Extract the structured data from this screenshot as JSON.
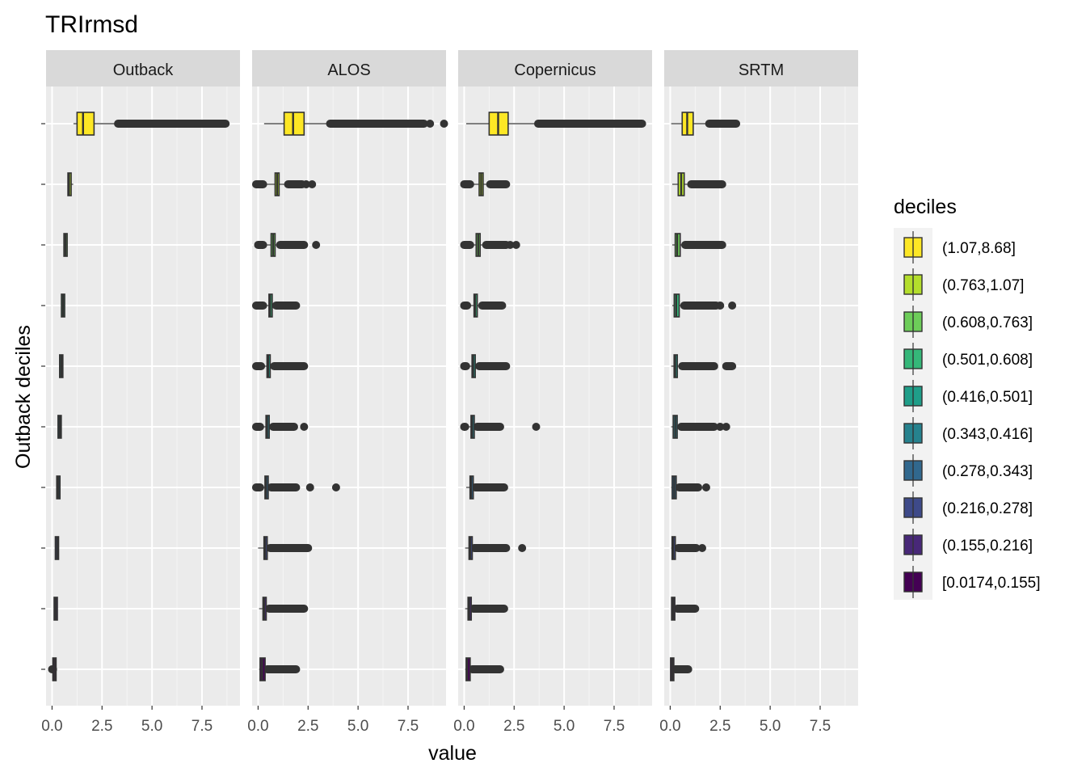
{
  "chart_data": {
    "type": "boxplot",
    "title": "TRIrmsd",
    "xlabel": "value",
    "ylabel": "Outback deciles",
    "xlim": [
      -0.3,
      9.4
    ],
    "xticks": [
      0,
      2.5,
      5,
      7.5
    ],
    "xtick_labels": [
      "0.0",
      "2.5",
      "5.0",
      "7.5"
    ],
    "facets": [
      "Outback",
      "ALOS",
      "Copernicus",
      "SRTM"
    ],
    "legend": {
      "title": "deciles",
      "position": "right",
      "entries": [
        {
          "label": "(1.07,8.68]",
          "color": "#FDE725"
        },
        {
          "label": "(0.763,1.07]",
          "color": "#B4DE2C"
        },
        {
          "label": "(0.608,0.763]",
          "color": "#6DCD59"
        },
        {
          "label": "(0.501,0.608]",
          "color": "#35B779"
        },
        {
          "label": "(0.416,0.501]",
          "color": "#1F9E89"
        },
        {
          "label": "(0.343,0.416]",
          "color": "#26828E"
        },
        {
          "label": "(0.278,0.343]",
          "color": "#31688E"
        },
        {
          "label": "(0.216,0.278]",
          "color": "#3E4A89"
        },
        {
          "label": "(0.155,0.216]",
          "color": "#482878"
        },
        {
          "label": "[0.0174,0.155]",
          "color": "#440154"
        }
      ]
    },
    "panels": [
      {
        "name": "Outback",
        "boxes": [
          {
            "min": 1.07,
            "q1": 1.25,
            "median": 1.55,
            "q3": 2.1,
            "whisker_hi": 3.3,
            "outliers": [
              [
                3.3,
                8.68
              ]
            ]
          },
          {
            "min": 0.77,
            "q1": 0.8,
            "median": 0.85,
            "q3": 0.95,
            "whisker_hi": 1.06,
            "outliers": []
          },
          {
            "min": 0.61,
            "q1": 0.63,
            "median": 0.67,
            "q3": 0.72,
            "whisker_hi": 0.76,
            "outliers": []
          },
          {
            "min": 0.51,
            "q1": 0.52,
            "median": 0.55,
            "q3": 0.58,
            "whisker_hi": 0.6,
            "outliers": []
          },
          {
            "min": 0.42,
            "q1": 0.44,
            "median": 0.46,
            "q3": 0.48,
            "whisker_hi": 0.5,
            "outliers": []
          },
          {
            "min": 0.35,
            "q1": 0.36,
            "median": 0.38,
            "q3": 0.4,
            "whisker_hi": 0.41,
            "outliers": []
          },
          {
            "min": 0.28,
            "q1": 0.3,
            "median": 0.31,
            "q3": 0.33,
            "whisker_hi": 0.34,
            "outliers": []
          },
          {
            "min": 0.22,
            "q1": 0.23,
            "median": 0.25,
            "q3": 0.26,
            "whisker_hi": 0.27,
            "outliers": []
          },
          {
            "min": 0.16,
            "q1": 0.17,
            "median": 0.18,
            "q3": 0.2,
            "whisker_hi": 0.21,
            "outliers": []
          },
          {
            "min": 0.08,
            "q1": 0.1,
            "median": 0.12,
            "q3": 0.14,
            "whisker_hi": 0.15,
            "outliers": [
              [
                0.0,
                0.05
              ]
            ]
          }
        ]
      },
      {
        "name": "ALOS",
        "boxes": [
          {
            "min": 0.3,
            "q1": 1.3,
            "median": 1.75,
            "q3": 2.3,
            "whisker_hi": 3.6,
            "outliers": [
              [
                3.6,
                8.3
              ],
              [
                8.6,
                8.6
              ],
              [
                9.3,
                9.3
              ]
            ]
          },
          {
            "min": 0.4,
            "q1": 0.85,
            "median": 0.95,
            "q3": 1.05,
            "whisker_hi": 1.5,
            "outliers": [
              [
                -0.1,
                0.25
              ],
              [
                1.5,
                2.2
              ],
              [
                2.4,
                2.4
              ],
              [
                2.7,
                2.7
              ]
            ]
          },
          {
            "min": 0.4,
            "q1": 0.65,
            "median": 0.75,
            "q3": 0.85,
            "whisker_hi": 1.1,
            "outliers": [
              [
                0.0,
                0.25
              ],
              [
                1.1,
                2.3
              ],
              [
                2.9,
                2.9
              ]
            ]
          },
          {
            "min": 0.3,
            "q1": 0.55,
            "median": 0.6,
            "q3": 0.7,
            "whisker_hi": 0.9,
            "outliers": [
              [
                -0.1,
                0.25
              ],
              [
                0.9,
                1.9
              ]
            ]
          },
          {
            "min": 0.25,
            "q1": 0.45,
            "median": 0.5,
            "q3": 0.6,
            "whisker_hi": 0.8,
            "outliers": [
              [
                -0.1,
                0.15
              ],
              [
                0.8,
                2.3
              ]
            ]
          },
          {
            "min": 0.25,
            "q1": 0.4,
            "median": 0.45,
            "q3": 0.55,
            "whisker_hi": 0.75,
            "outliers": [
              [
                -0.1,
                0.1
              ],
              [
                0.75,
                1.8
              ],
              [
                2.3,
                2.3
              ]
            ]
          },
          {
            "min": 0.25,
            "q1": 0.35,
            "median": 0.4,
            "q3": 0.5,
            "whisker_hi": 0.65,
            "outliers": [
              [
                -0.1,
                0.1
              ],
              [
                0.65,
                1.9
              ],
              [
                2.6,
                2.6
              ],
              [
                3.9,
                3.9
              ]
            ]
          },
          {
            "min": 0.0,
            "q1": 0.3,
            "median": 0.35,
            "q3": 0.45,
            "whisker_hi": 0.6,
            "outliers": [
              [
                0.6,
                2.5
              ]
            ]
          },
          {
            "min": 0.05,
            "q1": 0.25,
            "median": 0.3,
            "q3": 0.4,
            "whisker_hi": 0.55,
            "outliers": [
              [
                0.55,
                2.3
              ]
            ]
          },
          {
            "min": 0.05,
            "q1": 0.1,
            "median": 0.2,
            "q3": 0.35,
            "whisker_hi": 0.45,
            "outliers": [
              [
                0.45,
                1.9
              ]
            ]
          }
        ]
      },
      {
        "name": "Copernicus",
        "boxes": [
          {
            "min": 0.1,
            "q1": 1.25,
            "median": 1.7,
            "q3": 2.2,
            "whisker_hi": 3.7,
            "outliers": [
              [
                3.7,
                8.9
              ]
            ]
          },
          {
            "min": 0.4,
            "q1": 0.75,
            "median": 0.85,
            "q3": 0.95,
            "whisker_hi": 1.3,
            "outliers": [
              [
                0.0,
                0.3
              ],
              [
                1.3,
                2.1
              ]
            ]
          },
          {
            "min": 0.3,
            "q1": 0.6,
            "median": 0.7,
            "q3": 0.8,
            "whisker_hi": 1.1,
            "outliers": [
              [
                0.0,
                0.3
              ],
              [
                1.1,
                2.1
              ],
              [
                2.3,
                2.3
              ],
              [
                2.6,
                2.6
              ]
            ]
          },
          {
            "min": 0.3,
            "q1": 0.5,
            "median": 0.55,
            "q3": 0.65,
            "whisker_hi": 0.9,
            "outliers": [
              [
                0.0,
                0.15
              ],
              [
                0.9,
                1.9
              ]
            ]
          },
          {
            "min": 0.2,
            "q1": 0.4,
            "median": 0.45,
            "q3": 0.55,
            "whisker_hi": 0.75,
            "outliers": [
              [
                0.0,
                0.1
              ],
              [
                0.75,
                2.1
              ]
            ]
          },
          {
            "min": 0.2,
            "q1": 0.35,
            "median": 0.4,
            "q3": 0.5,
            "whisker_hi": 0.65,
            "outliers": [
              [
                0.0,
                0.05
              ],
              [
                0.65,
                1.8
              ],
              [
                3.6,
                3.6
              ]
            ]
          },
          {
            "min": 0.1,
            "q1": 0.3,
            "median": 0.35,
            "q3": 0.45,
            "whisker_hi": 0.55,
            "outliers": [
              [
                0.55,
                2.0
              ]
            ]
          },
          {
            "min": 0.05,
            "q1": 0.25,
            "median": 0.3,
            "q3": 0.4,
            "whisker_hi": 0.5,
            "outliers": [
              [
                0.5,
                2.1
              ],
              [
                2.9,
                2.9
              ]
            ]
          },
          {
            "min": 0.05,
            "q1": 0.2,
            "median": 0.25,
            "q3": 0.35,
            "whisker_hi": 0.45,
            "outliers": [
              [
                0.45,
                2.0
              ]
            ]
          },
          {
            "min": 0.05,
            "q1": 0.1,
            "median": 0.15,
            "q3": 0.3,
            "whisker_hi": 0.4,
            "outliers": [
              [
                0.4,
                1.8
              ]
            ]
          }
        ]
      },
      {
        "name": "SRTM",
        "boxes": [
          {
            "min": 0.05,
            "q1": 0.6,
            "median": 0.85,
            "q3": 1.15,
            "whisker_hi": 1.95,
            "outliers": [
              [
                1.95,
                3.3
              ]
            ]
          },
          {
            "min": 0.1,
            "q1": 0.4,
            "median": 0.55,
            "q3": 0.7,
            "whisker_hi": 1.05,
            "outliers": [
              [
                1.05,
                2.6
              ]
            ]
          },
          {
            "min": 0.1,
            "q1": 0.25,
            "median": 0.35,
            "q3": 0.5,
            "whisker_hi": 0.75,
            "outliers": [
              [
                0.75,
                2.6
              ]
            ]
          },
          {
            "min": 0.1,
            "q1": 0.2,
            "median": 0.3,
            "q3": 0.45,
            "whisker_hi": 0.7,
            "outliers": [
              [
                0.7,
                2.3
              ],
              [
                2.5,
                2.5
              ],
              [
                3.1,
                3.1
              ]
            ]
          },
          {
            "min": 0.05,
            "q1": 0.2,
            "median": 0.25,
            "q3": 0.35,
            "whisker_hi": 0.6,
            "outliers": [
              [
                0.6,
                2.2
              ],
              [
                2.8,
                3.1
              ]
            ]
          },
          {
            "min": 0.05,
            "q1": 0.15,
            "median": 0.25,
            "q3": 0.35,
            "whisker_hi": 0.55,
            "outliers": [
              [
                0.55,
                2.2
              ],
              [
                2.5,
                2.5
              ],
              [
                2.8,
                2.8
              ]
            ]
          },
          {
            "min": 0.05,
            "q1": 0.1,
            "median": 0.2,
            "q3": 0.3,
            "whisker_hi": 0.45,
            "outliers": [
              [
                0.45,
                1.4
              ],
              [
                1.8,
                1.8
              ]
            ]
          },
          {
            "min": 0.05,
            "q1": 0.1,
            "median": 0.15,
            "q3": 0.25,
            "whisker_hi": 0.4,
            "outliers": [
              [
                0.4,
                1.3
              ],
              [
                1.6,
                1.6
              ]
            ]
          },
          {
            "min": 0.05,
            "q1": 0.1,
            "median": 0.15,
            "q3": 0.2,
            "whisker_hi": 0.35,
            "outliers": [
              [
                0.35,
                1.25
              ]
            ]
          },
          {
            "min": 0.02,
            "q1": 0.05,
            "median": 0.1,
            "q3": 0.15,
            "whisker_hi": 0.25,
            "outliers": [
              [
                0.25,
                0.9
              ]
            ]
          }
        ]
      }
    ]
  }
}
